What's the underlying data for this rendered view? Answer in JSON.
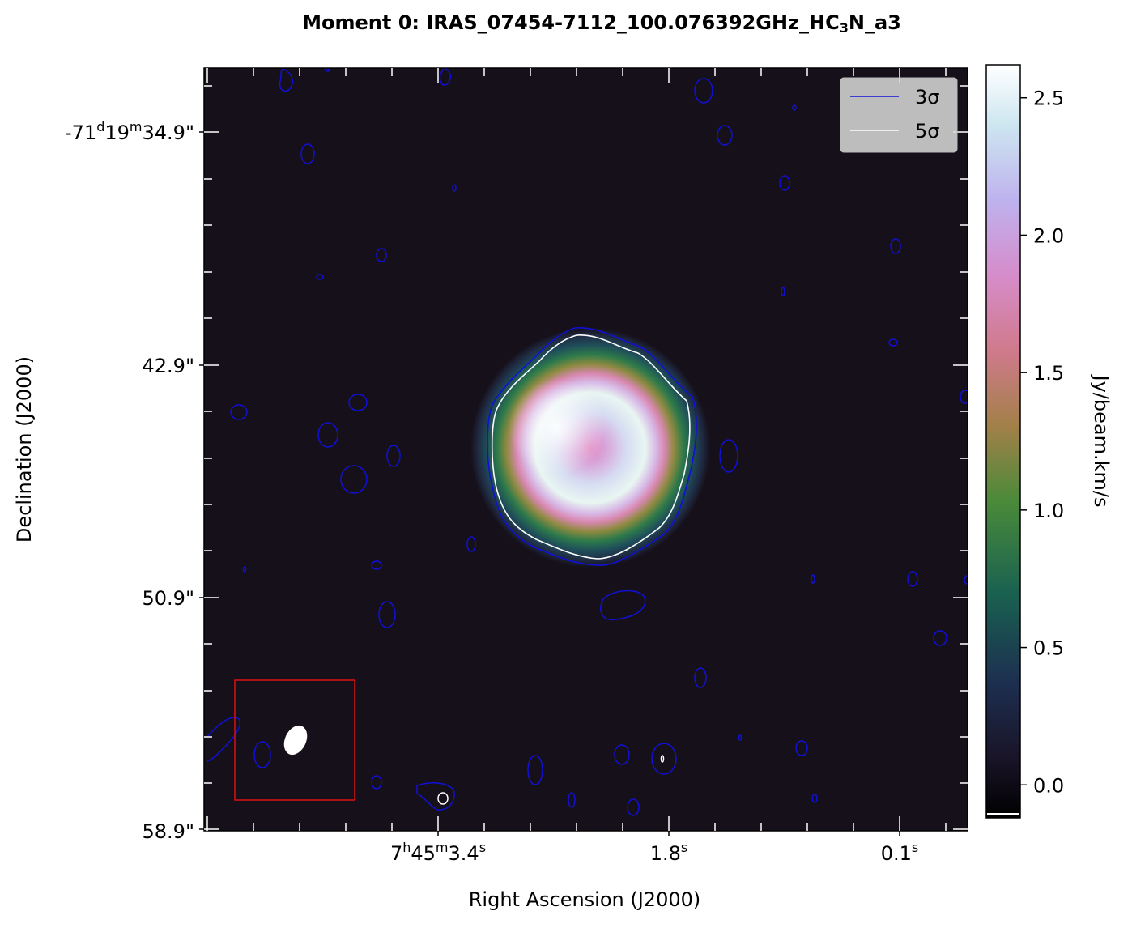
{
  "title": {
    "prefix": "Moment 0: IRAS_07454-7112_100.076392GHz_HC",
    "subscript": "3",
    "suffix": "N_a3"
  },
  "axes": {
    "xlabel": "Right Ascension (J2000)",
    "ylabel": "Declination (J2000)"
  },
  "colorbar": {
    "label": "Jy/beam.km/s",
    "ticks": [
      "0.0",
      "0.5",
      "1.0",
      "1.5",
      "2.0",
      "2.5"
    ]
  },
  "legend": {
    "entries": [
      {
        "label": "3σ",
        "color": "#1010d8"
      },
      {
        "label": "5σ",
        "color": "#ffffff"
      }
    ]
  },
  "colors": {
    "background": "#16101a",
    "contour_3sigma": "#1010d8",
    "contour_5sigma": "#ffffff",
    "beam_box": "#dd1010",
    "beam": "#ffffff"
  },
  "chart_data": {
    "type": "heatmap",
    "title": "Moment 0: IRAS_07454-7112_100.076392GHz_HC3N_a3",
    "xlabel": "Right Ascension (J2000)",
    "ylabel": "Declination (J2000)",
    "colorbar_label": "Jy/beam.km/s",
    "colorbar_range": [
      -0.12,
      2.62
    ],
    "colormap": "cubehelix",
    "ra_ticks": [
      {
        "h": "7",
        "m": "45",
        "s": "3.4"
      },
      {
        "h": "",
        "m": "",
        "s": "1.8"
      },
      {
        "h": "",
        "m": "",
        "s": "0.1"
      }
    ],
    "dec_ticks": [
      {
        "d": "-71",
        "m": "19",
        "s": "34.9\""
      },
      {
        "d": "",
        "m": "",
        "s": "42.9\""
      },
      {
        "d": "",
        "m": "",
        "s": "50.9\""
      },
      {
        "d": "",
        "m": "",
        "s": "58.9\""
      }
    ],
    "ring_peak": 2.62,
    "ring_center_value": 1.75,
    "contour_levels": [
      "3σ",
      "5σ"
    ],
    "legend_position": "top-right",
    "beam_box_position": "bottom-left"
  }
}
